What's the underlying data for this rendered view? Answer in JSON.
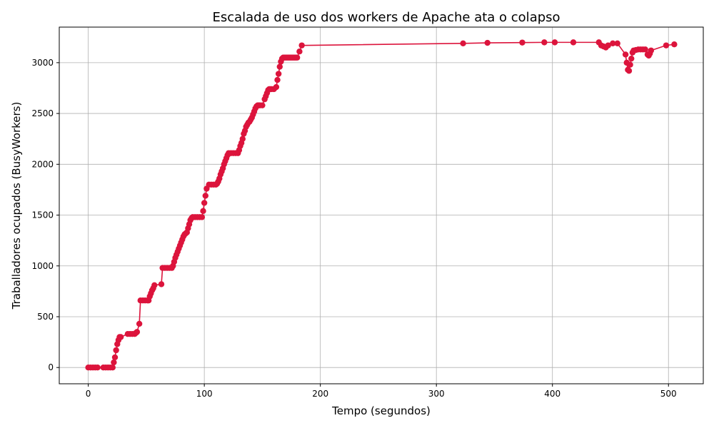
{
  "chart_data": {
    "type": "line",
    "title": "Escalada de uso dos workers de Apache ata o colapso",
    "xlabel": "Tempo (segundos)",
    "ylabel": "Traballadores ocupados (BusyWorkers)",
    "xlim": [
      -25,
      530
    ],
    "ylim": [
      -160,
      3350
    ],
    "xticks": [
      0,
      100,
      200,
      300,
      400,
      500
    ],
    "yticks": [
      0,
      500,
      1000,
      1500,
      2000,
      2500,
      3000
    ],
    "grid": true,
    "series": [
      {
        "color": "#dc143c",
        "marker": "circle",
        "x": [
          0,
          2,
          4,
          6,
          8,
          13,
          15,
          17,
          19,
          21,
          22,
          23,
          24,
          25,
          26,
          27,
          28,
          34,
          36,
          38,
          40,
          41,
          42,
          44,
          45,
          47,
          49,
          51,
          52,
          53,
          54,
          55,
          56,
          57,
          63,
          64,
          66,
          68,
          70,
          72,
          73,
          74,
          75,
          76,
          77,
          78,
          79,
          80,
          81,
          82,
          83,
          84,
          85,
          86,
          87,
          88,
          89,
          90,
          92,
          94,
          96,
          98,
          99,
          100,
          101,
          102,
          104,
          106,
          108,
          110,
          111,
          112,
          113,
          114,
          115,
          116,
          117,
          118,
          119,
          120,
          121,
          123,
          125,
          127,
          129,
          130,
          131,
          132,
          133,
          134,
          135,
          136,
          137,
          138,
          139,
          140,
          141,
          142,
          143,
          144,
          145,
          146,
          147,
          148,
          150,
          152,
          153,
          154,
          155,
          156,
          157,
          158,
          160,
          162,
          163,
          164,
          165,
          166,
          167,
          168,
          169,
          170,
          171,
          172,
          173,
          174,
          175,
          176,
          177,
          178,
          179,
          180,
          182,
          184,
          323,
          344,
          374,
          393,
          402,
          418,
          440,
          442,
          444,
          446,
          448,
          452,
          456,
          463,
          464,
          465,
          466,
          467,
          468,
          469,
          470,
          472,
          474,
          476,
          478,
          480,
          482,
          483,
          484,
          485,
          498,
          505
        ],
        "y": [
          0,
          0,
          0,
          0,
          0,
          0,
          0,
          0,
          0,
          0,
          50,
          100,
          170,
          230,
          270,
          300,
          300,
          330,
          330,
          330,
          330,
          340,
          350,
          430,
          660,
          660,
          660,
          660,
          660,
          700,
          730,
          760,
          780,
          810,
          820,
          980,
          980,
          980,
          980,
          980,
          1000,
          1040,
          1080,
          1110,
          1140,
          1170,
          1200,
          1230,
          1260,
          1290,
          1310,
          1320,
          1330,
          1370,
          1410,
          1450,
          1470,
          1480,
          1480,
          1480,
          1480,
          1480,
          1540,
          1620,
          1690,
          1760,
          1800,
          1800,
          1800,
          1800,
          1810,
          1830,
          1860,
          1900,
          1930,
          1960,
          2000,
          2030,
          2060,
          2090,
          2110,
          2110,
          2110,
          2110,
          2110,
          2140,
          2180,
          2210,
          2250,
          2300,
          2330,
          2370,
          2390,
          2410,
          2420,
          2440,
          2460,
          2490,
          2520,
          2550,
          2570,
          2580,
          2580,
          2580,
          2580,
          2640,
          2670,
          2700,
          2730,
          2740,
          2740,
          2740,
          2740,
          2760,
          2830,
          2890,
          2960,
          3010,
          3040,
          3050,
          3050,
          3050,
          3050,
          3050,
          3050,
          3050,
          3050,
          3050,
          3050,
          3050,
          3050,
          3050,
          3110,
          3170,
          3190,
          3195,
          3198,
          3200,
          3200,
          3200,
          3200,
          3170,
          3160,
          3150,
          3170,
          3190,
          3190,
          3080,
          3000,
          2930,
          2920,
          2980,
          3040,
          3100,
          3120,
          3125,
          3130,
          3130,
          3130,
          3130,
          3080,
          3070,
          3090,
          3120,
          3170,
          3180
        ]
      }
    ]
  }
}
